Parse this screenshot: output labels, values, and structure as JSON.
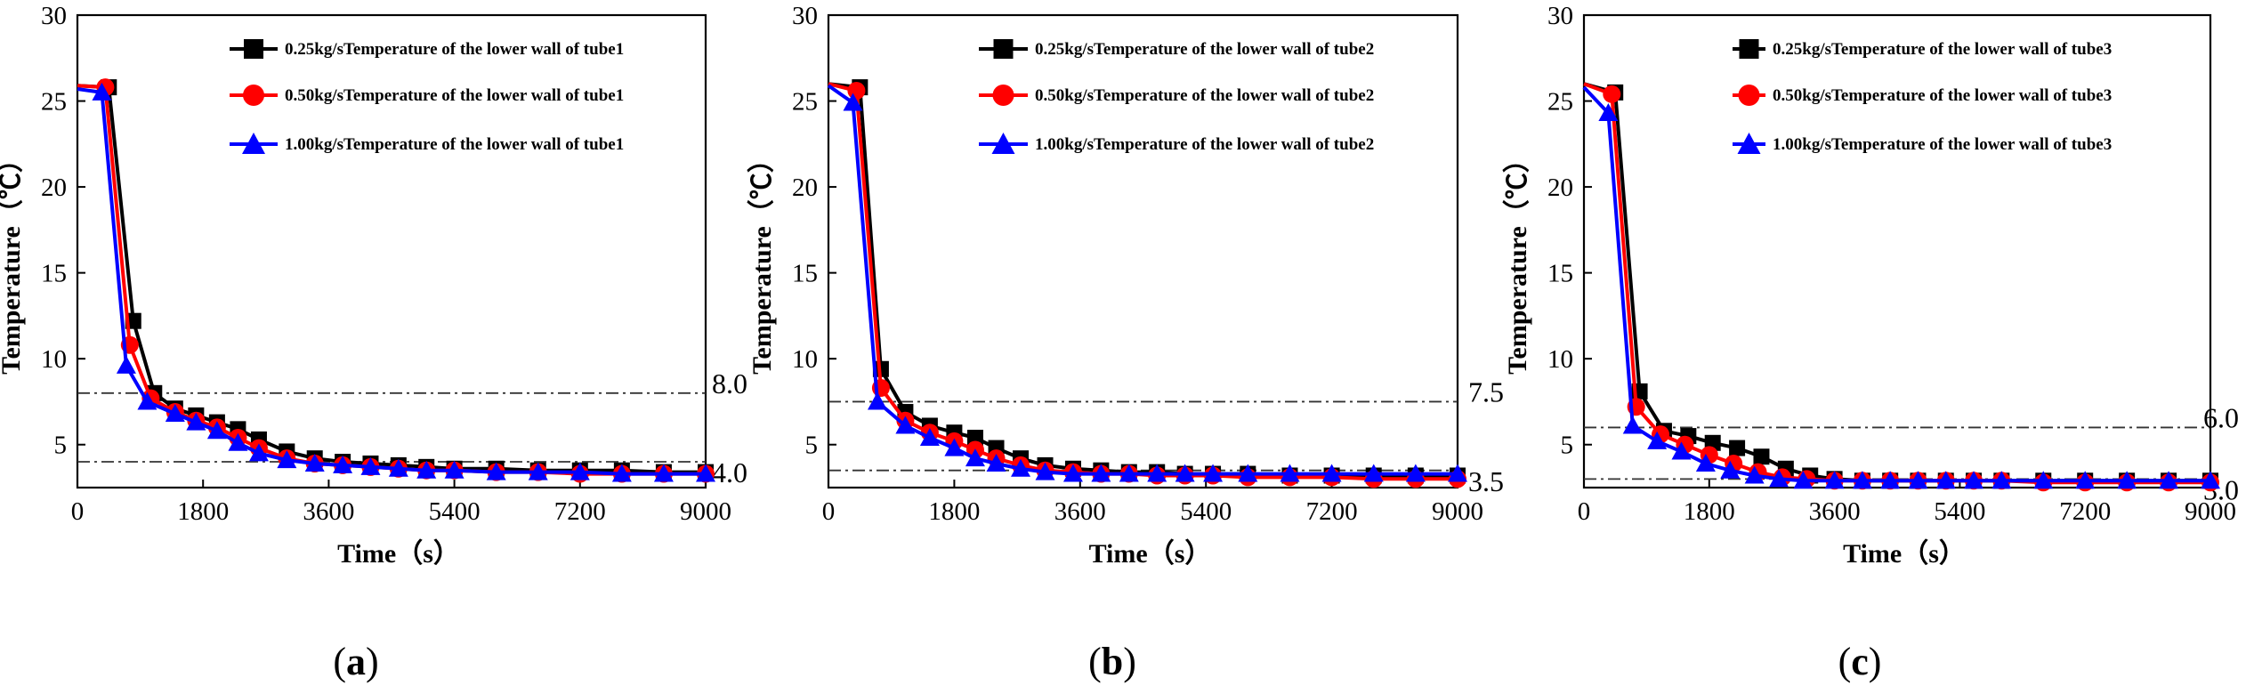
{
  "chart_data": [
    {
      "type": "line",
      "caption": "a",
      "xlabel": "Time（s）",
      "ylabel": "Temperature（℃）",
      "xlim": [
        0,
        9000
      ],
      "ylim": [
        2.5,
        30
      ],
      "xticks": [
        "0",
        "1800",
        "3600",
        "5400",
        "7200",
        "9000"
      ],
      "yticks": [
        "5",
        "10",
        "15",
        "20",
        "25",
        "30"
      ],
      "ref_lines": [
        {
          "value": 8.0,
          "label": "8.0"
        },
        {
          "value": 4.0,
          "label": "4.0"
        }
      ],
      "legend_position": "top-right",
      "series": [
        {
          "name": "0.25kg/sTemperature of the lower wall of tube1",
          "color": "#000000",
          "marker": "square",
          "x": [
            0,
            450,
            800,
            1100,
            1400,
            1700,
            2000,
            2300,
            2600,
            3000,
            3400,
            3800,
            4200,
            4600,
            5000,
            5400,
            6000,
            6600,
            7200,
            7800,
            8400,
            9000
          ],
          "y": [
            25.9,
            25.8,
            12.2,
            8.0,
            7.1,
            6.7,
            6.3,
            5.9,
            5.3,
            4.6,
            4.2,
            4.0,
            3.9,
            3.8,
            3.7,
            3.6,
            3.6,
            3.5,
            3.5,
            3.5,
            3.4,
            3.4
          ]
        },
        {
          "name": "0.50kg/sTemperature of the lower wall of tube1",
          "color": "#ff0000",
          "marker": "circle",
          "x": [
            0,
            400,
            750,
            1050,
            1400,
            1700,
            2000,
            2300,
            2600,
            3000,
            3400,
            3800,
            4200,
            4600,
            5000,
            5400,
            6000,
            6600,
            7200,
            7800,
            8400,
            9000
          ],
          "y": [
            25.9,
            25.8,
            10.8,
            7.7,
            6.9,
            6.4,
            6.0,
            5.4,
            4.8,
            4.2,
            3.9,
            3.8,
            3.7,
            3.6,
            3.5,
            3.5,
            3.4,
            3.4,
            3.3,
            3.3,
            3.3,
            3.3
          ]
        },
        {
          "name": "1.00kg/sTemperature of the lower wall of tube1",
          "color": "#0000ff",
          "marker": "triangle",
          "x": [
            0,
            350,
            700,
            1000,
            1400,
            1700,
            2000,
            2300,
            2600,
            3000,
            3400,
            3800,
            4200,
            4600,
            5000,
            5400,
            6000,
            6600,
            7200,
            7800,
            8400,
            9000
          ],
          "y": [
            25.7,
            25.5,
            9.6,
            7.5,
            6.8,
            6.3,
            5.8,
            5.1,
            4.5,
            4.1,
            3.9,
            3.8,
            3.7,
            3.6,
            3.5,
            3.5,
            3.4,
            3.4,
            3.4,
            3.3,
            3.3,
            3.3
          ]
        }
      ]
    },
    {
      "type": "line",
      "caption": "b",
      "xlabel": "Time（s）",
      "ylabel": "Temperature（℃）",
      "xlim": [
        0,
        9000
      ],
      "ylim": [
        2.5,
        30
      ],
      "xticks": [
        "0",
        "1800",
        "3600",
        "5400",
        "7200",
        "9000"
      ],
      "yticks": [
        "5",
        "10",
        "15",
        "20",
        "25",
        "30"
      ],
      "ref_lines": [
        {
          "value": 7.5,
          "label": "7.5"
        },
        {
          "value": 3.5,
          "label": "3.5"
        }
      ],
      "legend_position": "top-right",
      "series": [
        {
          "name": "0.25kg/sTemperature of the lower wall of tube2",
          "color": "#000000",
          "marker": "square",
          "x": [
            0,
            450,
            750,
            1100,
            1450,
            1800,
            2100,
            2400,
            2750,
            3100,
            3500,
            3900,
            4300,
            4700,
            5100,
            5500,
            6000,
            6600,
            7200,
            7800,
            8400,
            9000
          ],
          "y": [
            26.0,
            25.8,
            9.4,
            6.9,
            6.1,
            5.7,
            5.4,
            4.8,
            4.2,
            3.8,
            3.6,
            3.5,
            3.4,
            3.4,
            3.3,
            3.3,
            3.3,
            3.2,
            3.2,
            3.2,
            3.2,
            3.2
          ]
        },
        {
          "name": "0.50kg/sTemperature of the lower wall of tube2",
          "color": "#ff0000",
          "marker": "circle",
          "x": [
            0,
            400,
            750,
            1100,
            1450,
            1800,
            2100,
            2400,
            2750,
            3100,
            3500,
            3900,
            4300,
            4700,
            5100,
            5500,
            6000,
            6600,
            7200,
            7800,
            8400,
            9000
          ],
          "y": [
            26.0,
            25.6,
            8.3,
            6.4,
            5.7,
            5.2,
            4.7,
            4.2,
            3.8,
            3.5,
            3.4,
            3.3,
            3.3,
            3.2,
            3.2,
            3.2,
            3.1,
            3.1,
            3.1,
            3.0,
            3.0,
            3.0
          ]
        },
        {
          "name": "1.00kg/sTemperature of the lower wall of tube2",
          "color": "#0000ff",
          "marker": "triangle",
          "x": [
            0,
            350,
            700,
            1100,
            1450,
            1800,
            2100,
            2400,
            2750,
            3100,
            3500,
            3900,
            4300,
            4700,
            5100,
            5500,
            6000,
            6600,
            7200,
            7800,
            8400,
            9000
          ],
          "y": [
            25.9,
            24.9,
            7.5,
            6.1,
            5.4,
            4.8,
            4.2,
            3.9,
            3.6,
            3.4,
            3.3,
            3.3,
            3.3,
            3.3,
            3.3,
            3.3,
            3.3,
            3.3,
            3.3,
            3.3,
            3.3,
            3.3
          ]
        }
      ]
    },
    {
      "type": "line",
      "caption": "c",
      "xlabel": "Time（s）",
      "ylabel": "Temperature（℃）",
      "xlim": [
        0,
        9000
      ],
      "ylim": [
        2.5,
        30
      ],
      "xticks": [
        "0",
        "1800",
        "3600",
        "5400",
        "7200",
        "9000"
      ],
      "yticks": [
        "5",
        "10",
        "15",
        "20",
        "25",
        "30"
      ],
      "ref_lines": [
        {
          "value": 6.0,
          "label": "6.0"
        },
        {
          "value": 3.0,
          "label": "3.0"
        }
      ],
      "legend_position": "top-right",
      "series": [
        {
          "name": "0.25kg/sTemperature of the lower wall of tube3",
          "color": "#000000",
          "marker": "square",
          "x": [
            0,
            450,
            800,
            1150,
            1500,
            1850,
            2200,
            2550,
            2900,
            3250,
            3600,
            4000,
            4400,
            4800,
            5200,
            5600,
            6000,
            6600,
            7200,
            7800,
            8400,
            9000
          ],
          "y": [
            26.0,
            25.5,
            8.1,
            5.8,
            5.5,
            5.1,
            4.8,
            4.3,
            3.6,
            3.2,
            3.0,
            2.9,
            2.9,
            2.9,
            2.9,
            2.9,
            2.9,
            2.9,
            2.9,
            2.9,
            2.9,
            2.9
          ]
        },
        {
          "name": "0.50kg/sTemperature of the lower wall of tube3",
          "color": "#ff0000",
          "marker": "circle",
          "x": [
            0,
            400,
            750,
            1100,
            1450,
            1800,
            2150,
            2500,
            2850,
            3200,
            3600,
            4000,
            4400,
            4800,
            5200,
            5600,
            6000,
            6600,
            7200,
            7800,
            8400,
            9000
          ],
          "y": [
            26.0,
            25.4,
            7.2,
            5.6,
            5.0,
            4.4,
            3.9,
            3.4,
            3.1,
            3.0,
            2.9,
            2.9,
            2.9,
            2.9,
            2.9,
            2.9,
            2.9,
            2.8,
            2.8,
            2.8,
            2.8,
            2.8
          ]
        },
        {
          "name": "1.00kg/sTemperature of the lower wall of tube3",
          "color": "#0000ff",
          "marker": "triangle",
          "x": [
            0,
            350,
            700,
            1050,
            1400,
            1750,
            2100,
            2450,
            2800,
            3150,
            3600,
            4000,
            4400,
            4800,
            5200,
            5600,
            6000,
            6600,
            7200,
            7800,
            8400,
            9000
          ],
          "y": [
            25.8,
            24.3,
            6.1,
            5.2,
            4.6,
            3.9,
            3.5,
            3.2,
            3.0,
            2.9,
            2.9,
            2.9,
            2.9,
            2.9,
            2.9,
            2.9,
            2.9,
            2.9,
            2.9,
            2.9,
            2.9,
            2.9
          ]
        }
      ]
    }
  ]
}
